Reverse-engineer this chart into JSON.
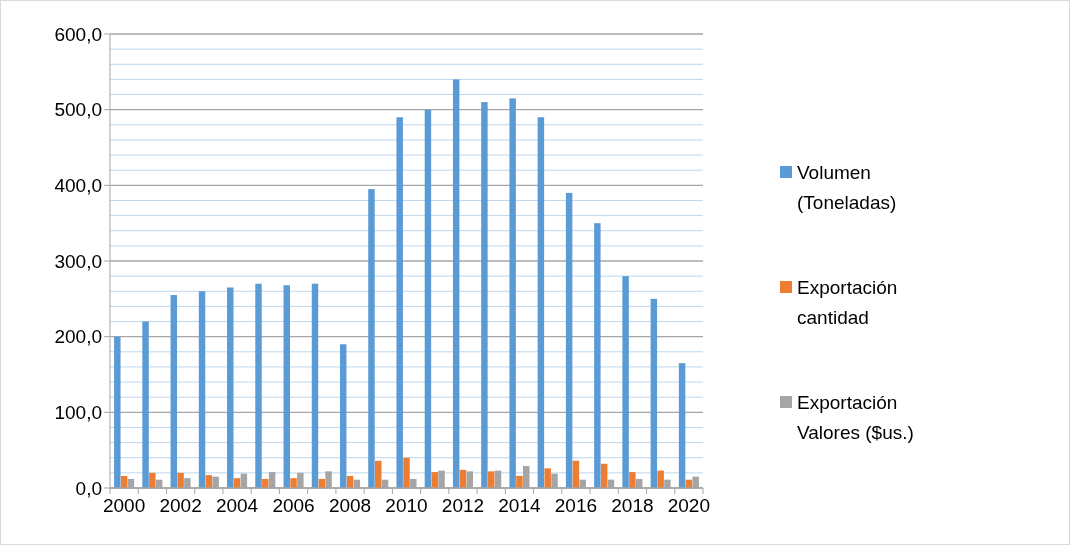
{
  "chart_data": {
    "type": "bar",
    "categories": [
      "2000",
      null,
      "2002",
      null,
      "2004",
      null,
      "2006",
      null,
      "2008",
      null,
      "2010",
      null,
      "2012",
      null,
      "2014",
      null,
      "2016",
      null,
      "2018",
      null,
      "2020"
    ],
    "series": [
      {
        "name": "Volumen (Toneladas)",
        "color": "#5b9bd5",
        "values": [
          200,
          220,
          255,
          260,
          265,
          270,
          268,
          270,
          190,
          395,
          490,
          500,
          540,
          510,
          515,
          490,
          390,
          350,
          280,
          250,
          165
        ]
      },
      {
        "name": "Exportación cantidad",
        "color": "#ed7d31",
        "values": [
          16,
          20,
          20,
          17,
          13,
          12,
          13,
          12,
          16,
          36,
          40,
          21,
          24,
          22,
          16,
          26,
          36,
          32,
          21,
          23,
          11
        ]
      },
      {
        "name": "Exportación Valores ($us.)",
        "color": "#a5a5a5",
        "values": [
          12,
          11,
          13,
          15,
          19,
          21,
          20,
          22,
          11,
          11,
          12,
          23,
          22,
          23,
          29,
          19,
          11,
          11,
          12,
          11,
          15
        ]
      }
    ],
    "ylim": [
      0,
      600
    ],
    "yticks": [
      {
        "value": 0,
        "label": "0,0"
      },
      {
        "value": 20,
        "label": null
      },
      {
        "value": 40,
        "label": null
      },
      {
        "value": 60,
        "label": null
      },
      {
        "value": 80,
        "label": null
      },
      {
        "value": 100,
        "label": "100,0"
      },
      {
        "value": 120,
        "label": null
      },
      {
        "value": 140,
        "label": null
      },
      {
        "value": 160,
        "label": null
      },
      {
        "value": 180,
        "label": null
      },
      {
        "value": 200,
        "label": "200,0"
      },
      {
        "value": 220,
        "label": null
      },
      {
        "value": 240,
        "label": null
      },
      {
        "value": 260,
        "label": null
      },
      {
        "value": 280,
        "label": null
      },
      {
        "value": 300,
        "label": "300,0"
      },
      {
        "value": 320,
        "label": null
      },
      {
        "value": 340,
        "label": null
      },
      {
        "value": 360,
        "label": null
      },
      {
        "value": 380,
        "label": null
      },
      {
        "value": 400,
        "label": "400,0"
      },
      {
        "value": 420,
        "label": null
      },
      {
        "value": 440,
        "label": null
      },
      {
        "value": 460,
        "label": null
      },
      {
        "value": 480,
        "label": null
      },
      {
        "value": 500,
        "label": "500,0"
      },
      {
        "value": 520,
        "label": null
      },
      {
        "value": 540,
        "label": null
      },
      {
        "value": 560,
        "label": null
      },
      {
        "value": 580,
        "label": null
      },
      {
        "value": 600,
        "label": "600,0"
      }
    ],
    "grid": "y",
    "legend": "right"
  }
}
